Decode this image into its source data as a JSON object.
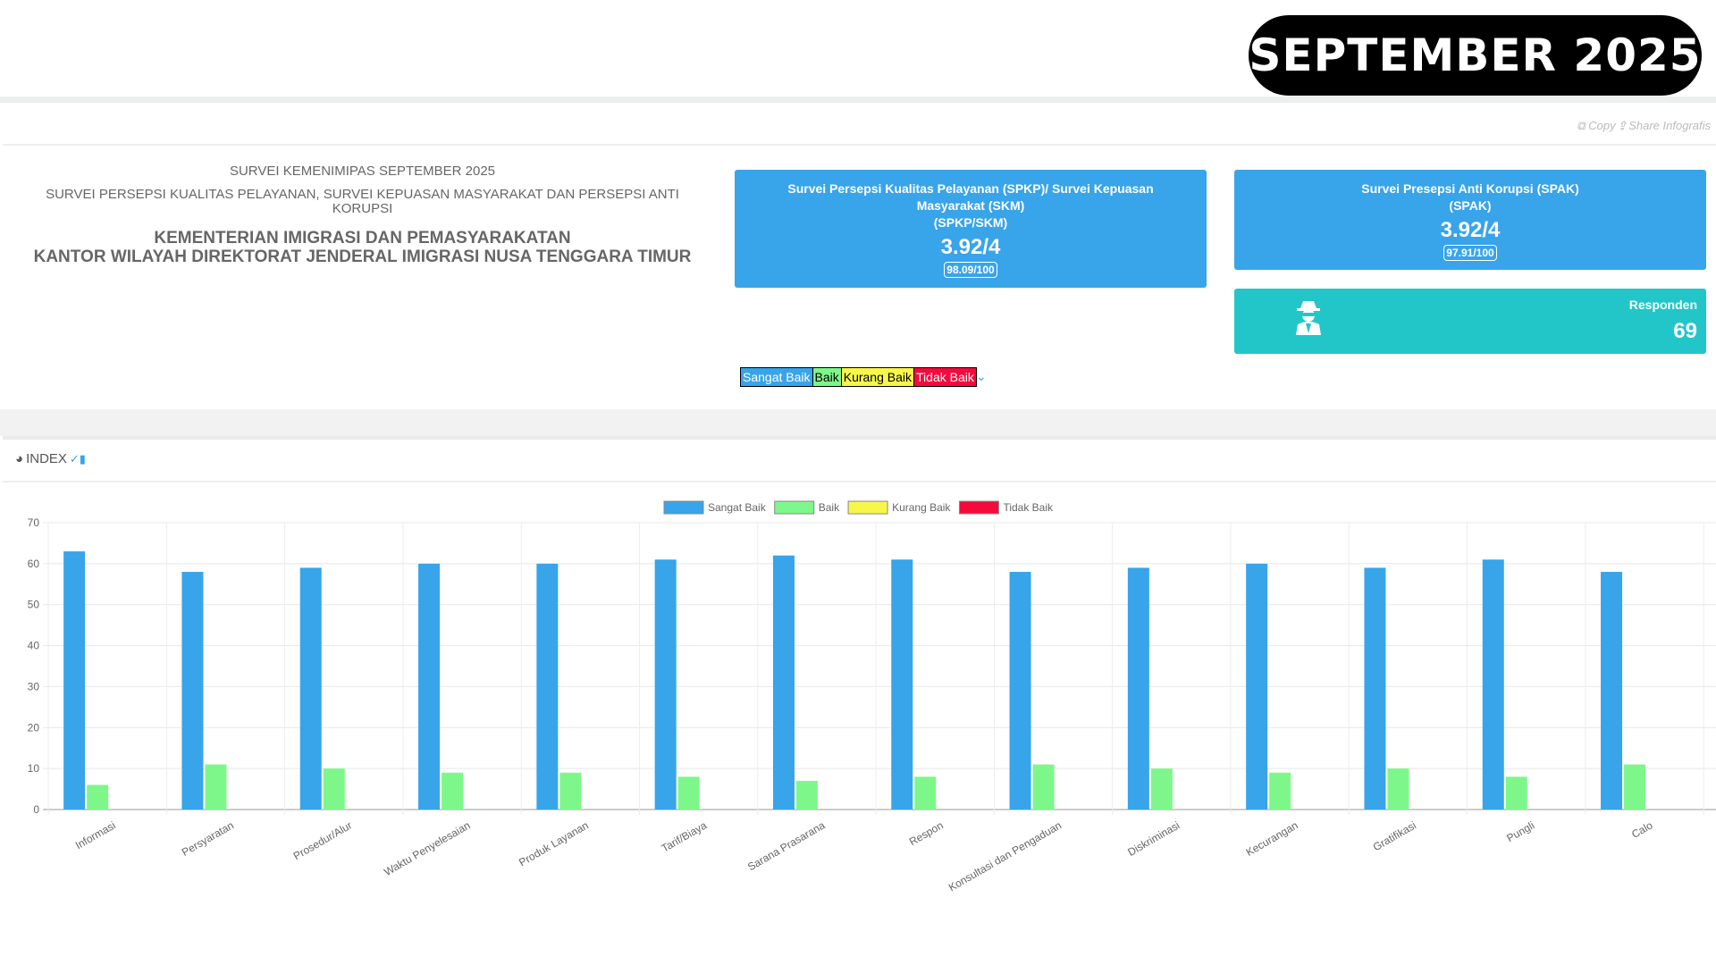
{
  "badge": "SEPTEMBER 2025",
  "toolbar": {
    "copy": "Copy",
    "share": "Share Infografis"
  },
  "header": {
    "line1": "SURVEI KEMENIMIPAS SEPTEMBER 2025",
    "line2": "SURVEI PERSEPSI KUALITAS PELAYANAN, SURVEI KEPUASAN MASYARAKAT DAN PERSEPSI ANTI KORUPSI",
    "line3": "KEMENTERIAN IMIGRASI DAN PEMASYARAKATAN",
    "line4": "KANTOR WILAYAH DIREKTORAT JENDERAL IMIGRASI NUSA TENGGARA TIMUR"
  },
  "cards": {
    "spkp": {
      "title": "Survei Persepsi Kualitas Pelayanan (SPKP)/ Survei Kepuasan Masyarakat (SKM)",
      "sub": "(SPKP/SKM)",
      "value": "3.92/4",
      "score": "98.09/100"
    },
    "spak": {
      "title": "Survei Presepsi Anti Korupsi (SPAK)",
      "sub": "(SPAK)",
      "value": "3.92/4",
      "score": "97.91/100"
    },
    "responden": {
      "label": "Responden",
      "value": "69",
      "icon": "user-secret-icon"
    }
  },
  "legend_strip": [
    {
      "label": "Sangat Baik",
      "color": "#38a4ea"
    },
    {
      "label": "Baik",
      "color": "#7ef78a"
    },
    {
      "label": "Kurang Baik",
      "color": "#f7f74b"
    },
    {
      "label": "Tidak Baik",
      "color": "#f40a3c"
    }
  ],
  "index": {
    "title": "INDEX"
  },
  "chart_data": {
    "type": "bar",
    "categories": [
      "Informasi",
      "Persyaratan",
      "Prosedur/Alur",
      "Waktu Penyelesaian",
      "Produk Layanan",
      "Tarif/Biaya",
      "Sarana Prasarana",
      "Respon",
      "Konsultasi dan Pengaduan",
      "Diskriminasi",
      "Kecurangan",
      "Gratifikasi",
      "Pungli",
      "Calo"
    ],
    "series": [
      {
        "name": "Sangat Baik",
        "color": "#38a4ea",
        "values": [
          63,
          58,
          59,
          60,
          60,
          61,
          62,
          61,
          58,
          59,
          60,
          59,
          61,
          58
        ]
      },
      {
        "name": "Baik",
        "color": "#7ef78a",
        "values": [
          6,
          11,
          10,
          9,
          9,
          8,
          7,
          8,
          11,
          10,
          9,
          10,
          8,
          11
        ]
      },
      {
        "name": "Kurang Baik",
        "color": "#f7f74b",
        "values": [
          0,
          0,
          0,
          0,
          0,
          0,
          0,
          0,
          0,
          0,
          0,
          0,
          0,
          0
        ]
      },
      {
        "name": "Tidak Baik",
        "color": "#f40a3c",
        "values": [
          0,
          0,
          0,
          0,
          0,
          0,
          0,
          0,
          0,
          0,
          0,
          0,
          0,
          0
        ]
      }
    ],
    "ylim": [
      0,
      70
    ],
    "yticks": [
      0,
      10,
      20,
      30,
      40,
      50,
      60,
      70
    ],
    "grid": true,
    "legend": "top-center"
  }
}
